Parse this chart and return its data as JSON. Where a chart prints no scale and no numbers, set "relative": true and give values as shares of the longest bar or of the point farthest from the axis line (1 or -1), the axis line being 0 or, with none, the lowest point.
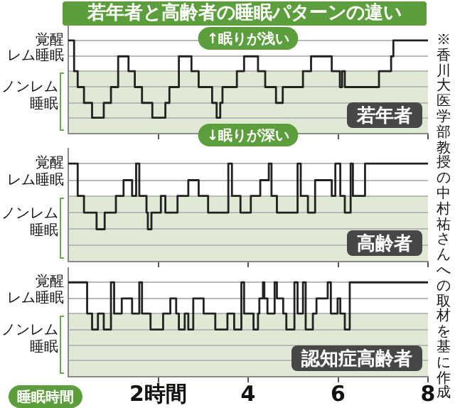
{
  "chart_data": [
    {
      "type": "step",
      "relative": true,
      "title": "若年者と高齢者の睡眠パターンの違い",
      "subtitle": "若年者",
      "ylabel": "ノンレム睡眠",
      "annotations": [
        "覚醒",
        "レム睡眠",
        "↑眠りが浅い",
        "↓眠りが深い",
        "※香川大医学部教授の中村祐さんへの取材を基に作成"
      ],
      "series": [
        {
          "color": "#222222",
          "x": [
            0,
            0.13,
            0.21,
            0.35,
            0.53,
            0.79,
            0.95,
            1.11,
            1.34,
            1.48,
            1.64,
            1.87,
            2.16,
            2.25,
            2.46,
            2.74,
            2.9,
            3.2,
            3.3,
            3.38,
            3.43,
            3.75,
            3.91,
            4.22,
            4.38,
            4.62,
            4.77,
            5.22,
            5.4,
            5.86,
            6.04,
            6.09,
            6.15,
            6.91,
            7.18,
            7.23,
            8
          ],
          "values": [
            1,
            0.67,
            0.5,
            0.33,
            0.17,
            0.33,
            0.5,
            0.83,
            0.67,
            0.5,
            0.33,
            0.17,
            0.33,
            0.5,
            0.83,
            0.67,
            0.5,
            0.33,
            0.17,
            0.33,
            0.5,
            0.67,
            0.83,
            0.67,
            0.5,
            0.33,
            0.5,
            0.67,
            0.83,
            0.67,
            0.5,
            0.67,
            0.5,
            0.67,
            0.83,
            1,
            1
          ]
        }
      ],
      "xlim": [
        0,
        8
      ],
      "xticks": [
        2,
        4,
        6,
        8
      ],
      "bands": [
        {
          "axis": "y",
          "from": 0,
          "to": 0.67,
          "color": "#dfe9d3"
        }
      ],
      "grid": "y",
      "tick_labels": false
    },
    {
      "type": "step",
      "relative": true,
      "subtitle": "高齢者",
      "ylabel": "ノンレム睡眠",
      "annotations": [
        "覚醒",
        "レム睡眠"
      ],
      "series": [
        {
          "color": "#222222",
          "x": [
            0,
            0.21,
            0.35,
            0.63,
            0.81,
            1.06,
            1.23,
            1.42,
            1.51,
            1.58,
            1.74,
            1.77,
            1.85,
            2.06,
            2.16,
            2.43,
            2.67,
            2.9,
            3.11,
            3.56,
            3.64,
            3.83,
            4.06,
            4.27,
            4.46,
            4.52,
            4.64,
            5.1,
            5.17,
            5.33,
            5.49,
            5.86,
            5.94,
            6.05,
            6.15,
            6.28,
            6.33,
            6.6,
            8
          ],
          "values": [
            1,
            0.67,
            0.5,
            0.33,
            0.5,
            0.67,
            0.83,
            0.67,
            1,
            0.67,
            0.5,
            0.33,
            0.5,
            0.67,
            0.5,
            0.67,
            0.83,
            0.67,
            0.5,
            1,
            0.67,
            0.5,
            0.67,
            0.83,
            1,
            0.67,
            0.5,
            1,
            0.67,
            0.5,
            0.83,
            0.67,
            1,
            0.67,
            0.5,
            1,
            0.67,
            1,
            1
          ]
        }
      ],
      "xlim": [
        0,
        8
      ],
      "xticks": [
        2,
        4,
        6,
        8
      ],
      "bands": [
        {
          "axis": "y",
          "from": 0,
          "to": 0.67,
          "color": "#dfe9d3"
        }
      ],
      "grid": "y",
      "tick_labels": false
    },
    {
      "type": "step",
      "relative": true,
      "subtitle": "認知症高齢者",
      "xlabel": "睡眠時間",
      "ylabel": "ノンレム睡眠",
      "annotations": [
        "覚醒",
        "レム睡眠"
      ],
      "series": [
        {
          "color": "#222222",
          "x": [
            0,
            0.42,
            0.53,
            0.66,
            0.79,
            0.95,
            1.02,
            1.19,
            1.42,
            1.58,
            1.64,
            1.83,
            2.11,
            2.27,
            2.4,
            2.46,
            2.59,
            2.67,
            2.78,
            3.01,
            3.27,
            3.54,
            3.69,
            3.85,
            3.91,
            4.12,
            4.22,
            4.25,
            4.33,
            4.36,
            4.43,
            4.59,
            4.64,
            4.78,
            4.85,
            5.03,
            5.1,
            5.22,
            5.28,
            5.44,
            5.52,
            5.77,
            5.84,
            5.99,
            6.05,
            6.15,
            6.26,
            8
          ],
          "values": [
            1,
            0.67,
            0.5,
            0.67,
            0.5,
            1,
            0.67,
            0.83,
            0.67,
            1,
            0.67,
            0.5,
            0.67,
            0.83,
            0.67,
            0.5,
            0.67,
            0.5,
            0.83,
            0.67,
            0.5,
            0.67,
            0.5,
            1,
            0.67,
            0.5,
            0.67,
            0.83,
            1,
            0.83,
            0.67,
            1,
            0.83,
            0.67,
            0.5,
            1,
            0.67,
            1,
            0.5,
            0.67,
            0.83,
            1,
            0.67,
            0.83,
            0.67,
            0.5,
            1,
            1
          ]
        }
      ],
      "xlim": [
        0,
        8
      ],
      "xticks": [
        {
          "value": 2,
          "label": "2時間"
        },
        4,
        6,
        8
      ],
      "bands": [
        {
          "axis": "y",
          "from": 0,
          "to": 0.67,
          "color": "#dfe9d3"
        }
      ],
      "grid": "y",
      "tick_labels": "x"
    }
  ]
}
